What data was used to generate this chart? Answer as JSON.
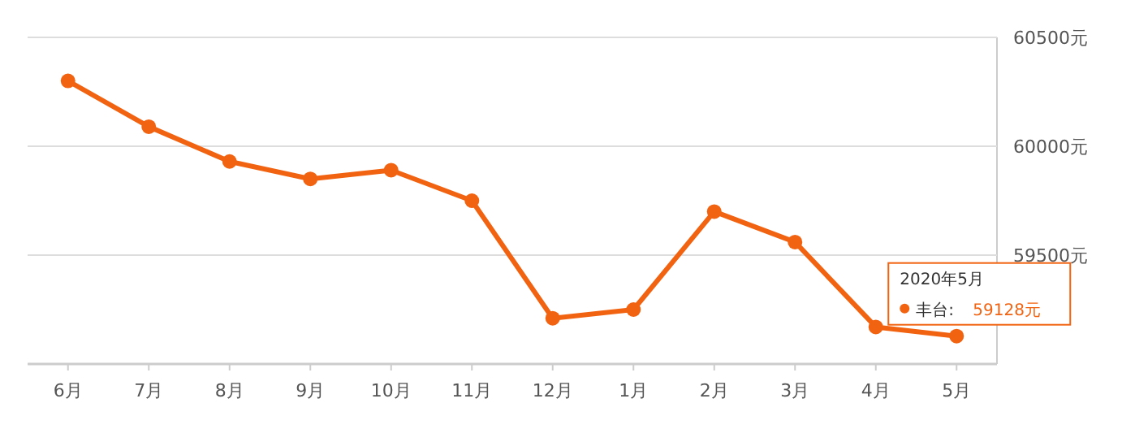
{
  "chart_data": {
    "type": "line",
    "categories": [
      "6月",
      "7月",
      "8月",
      "9月",
      "10月",
      "11月",
      "12月",
      "1月",
      "2月",
      "3月",
      "4月",
      "5月"
    ],
    "series": [
      {
        "name": "丰台:",
        "color": "#f26311",
        "values": [
          60300,
          60090,
          59930,
          59850,
          59890,
          59750,
          59210,
          59250,
          59700,
          59560,
          59170,
          59128
        ],
        "value_labels": [
          null,
          null,
          null,
          null,
          null,
          null,
          null,
          null,
          null,
          null,
          null,
          "59128元"
        ]
      }
    ],
    "ylim": [
      59000,
      60500
    ],
    "yticks": [
      {
        "value": 59000,
        "label": null
      },
      {
        "value": 59500,
        "label": "59500元"
      },
      {
        "value": 60000,
        "label": "60000元"
      },
      {
        "value": 60500,
        "label": "60500元"
      }
    ],
    "grid": "y",
    "marker": "circle",
    "line_style": "solid",
    "legend": "bottom right",
    "annotations": [
      "2020年5月"
    ]
  }
}
